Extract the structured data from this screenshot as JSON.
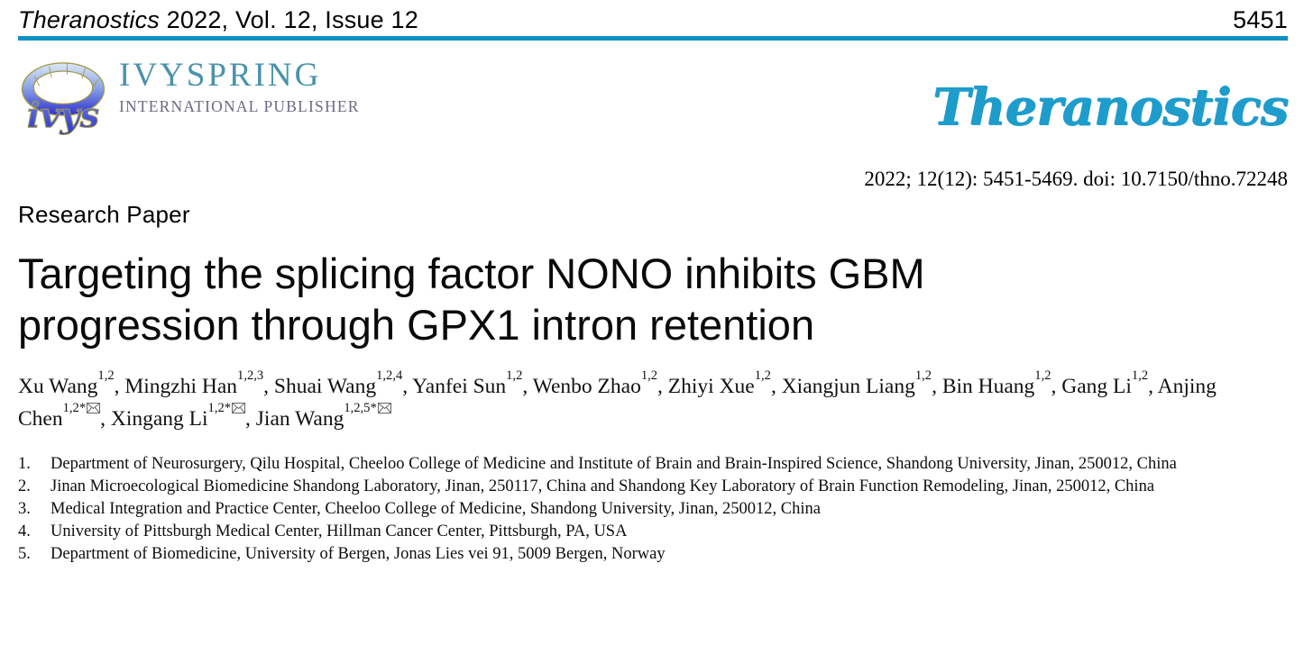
{
  "running_header": {
    "journal_name": "Theranostics",
    "issue_info": " 2022, Vol. 12, Issue 12",
    "page_number": "5451"
  },
  "publisher": {
    "name": "IVYSPRING",
    "subtitle": "INTERNATIONAL PUBLISHER"
  },
  "journal_logo_text": "Theranostics",
  "citation": "2022; 12(12): 5451-5469. doi: 10.7150/thno.72248",
  "article": {
    "type_label": "Research Paper",
    "title_lines": [
      "Targeting the splicing factor NONO inhibits GBM",
      "progression through GPX1 intron retention"
    ]
  },
  "authors": [
    {
      "name": "Xu Wang",
      "sup": "1,2",
      "corresponding": false
    },
    {
      "name": "Mingzhi Han",
      "sup": "1,2,3",
      "corresponding": false
    },
    {
      "name": "Shuai Wang",
      "sup": "1,2,4",
      "corresponding": false
    },
    {
      "name": "Yanfei Sun",
      "sup": "1,2",
      "corresponding": false
    },
    {
      "name": "Wenbo Zhao",
      "sup": "1,2",
      "corresponding": false
    },
    {
      "name": "Zhiyi Xue",
      "sup": "1,2",
      "corresponding": false
    },
    {
      "name": "Xiangjun Liang",
      "sup": "1,2",
      "corresponding": false
    },
    {
      "name": "Bin Huang",
      "sup": "1,2",
      "corresponding": false
    },
    {
      "name": "Gang Li",
      "sup": "1,2",
      "corresponding": false
    },
    {
      "name": "Anjing Chen",
      "sup": "1,2*",
      "corresponding": true
    },
    {
      "name": "Xingang Li",
      "sup": "1,2*",
      "corresponding": true
    },
    {
      "name": "Jian Wang",
      "sup": "1,2,5*",
      "corresponding": true
    }
  ],
  "affiliations": [
    "Department of Neurosurgery, Qilu Hospital, Cheeloo College of Medicine and Institute of Brain and Brain-Inspired Science, Shandong University, Jinan, 250012, China",
    "Jinan Microecological Biomedicine Shandong Laboratory, Jinan, 250117, China and Shandong Key Laboratory of Brain Function Remodeling, Jinan, 250012, China",
    "Medical Integration and Practice Center, Cheeloo College of Medicine, Shandong University, Jinan, 250012, China",
    "University of Pittsburgh Medical Center, Hillman Cancer Center, Pittsburgh, PA, USA",
    "Department of Biomedicine, University of Bergen, Jonas Lies vei 91, 5009 Bergen, Norway"
  ],
  "colors": {
    "rule_teal": "#1090c3",
    "journal_logo_blue": "#1e9ccb",
    "publisher_teal": "#4a92ac",
    "publisher_gray": "#6b6a85",
    "ring_blue_dark": "#2b2fd0",
    "ring_blue_light": "#dce8f8",
    "ring_outline_gold": "#a39a4e"
  }
}
